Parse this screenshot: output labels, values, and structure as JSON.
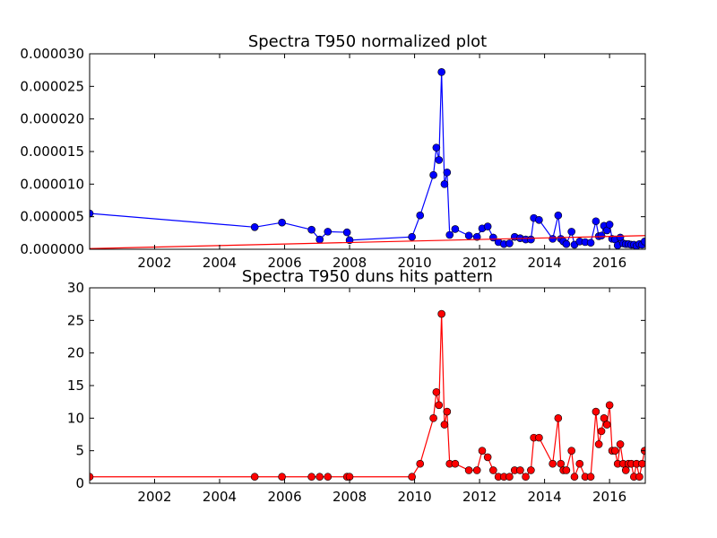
{
  "chart_data": [
    {
      "type": "line",
      "title": "Spectra T950 normalized plot",
      "xlabel": "",
      "ylabel": "",
      "xlim": [
        2000.0,
        2017.1
      ],
      "ylim": [
        0,
        3e-05
      ],
      "xticks": [
        2002,
        2004,
        2006,
        2008,
        2010,
        2012,
        2014,
        2016
      ],
      "xtick_labels": [
        "2002",
        "2004",
        "2006",
        "2008",
        "2010",
        "2012",
        "2014",
        "2016"
      ],
      "yticks": [
        0,
        5e-06,
        1e-05,
        1.5e-05,
        2e-05,
        2.5e-05,
        3e-05
      ],
      "ytick_labels": [
        "0.000000",
        "0.000005",
        "0.000010",
        "0.000015",
        "0.000020",
        "0.000025",
        "0.000030"
      ],
      "grid": false,
      "series": [
        {
          "color": "#0000ff",
          "marker": "circle",
          "x": [
            2000.0,
            2005.08,
            2005.92,
            2006.83,
            2007.08,
            2007.33,
            2007.92,
            2008.0,
            2009.92,
            2010.17,
            2010.58,
            2010.67,
            2010.75,
            2010.83,
            2010.92,
            2011.0,
            2011.08,
            2011.25,
            2011.67,
            2011.92,
            2012.08,
            2012.25,
            2012.42,
            2012.58,
            2012.75,
            2012.92,
            2013.08,
            2013.25,
            2013.42,
            2013.58,
            2013.67,
            2013.83,
            2014.25,
            2014.42,
            2014.5,
            2014.58,
            2014.67,
            2014.83,
            2014.92,
            2015.08,
            2015.25,
            2015.42,
            2015.58,
            2015.67,
            2015.75,
            2015.83,
            2015.92,
            2016.0,
            2016.08,
            2016.17,
            2016.25,
            2016.33,
            2016.42,
            2016.5,
            2016.58,
            2016.67,
            2016.75,
            2016.83,
            2016.92,
            2017.0,
            2017.08
          ],
          "y": [
            5.5e-06,
            3.4e-06,
            4.1e-06,
            3e-06,
            1.5e-06,
            2.7e-06,
            2.6e-06,
            1.4e-06,
            1.9e-06,
            5.2e-06,
            1.14e-05,
            1.56e-05,
            1.37e-05,
            2.72e-05,
            1e-05,
            1.18e-05,
            2.2e-06,
            3.1e-06,
            2.1e-06,
            1.9e-06,
            3.2e-06,
            3.5e-06,
            1.8e-06,
            1.1e-06,
            8e-07,
            9e-07,
            1.9e-06,
            1.7e-06,
            1.5e-06,
            1.5e-06,
            4.8e-06,
            4.5e-06,
            1.6e-06,
            5.2e-06,
            1.6e-06,
            1.2e-06,
            8e-07,
            2.7e-06,
            7e-07,
            1.2e-06,
            1.1e-06,
            1e-06,
            4.3e-06,
            2e-06,
            2.1e-06,
            3.6e-06,
            2.9e-06,
            3.8e-06,
            1.6e-06,
            1.5e-06,
            6e-07,
            1.8e-06,
            9e-07,
            8e-07,
            8e-07,
            7e-07,
            7e-07,
            5e-07,
            8e-07,
            7e-07,
            1.2e-06
          ]
        },
        {
          "color": "#ff0000",
          "marker": "none",
          "x": [
            2000.0,
            2017.1
          ],
          "y": [
            1e-07,
            2.1e-06
          ]
        }
      ]
    },
    {
      "type": "line",
      "title": "Spectra T950 duns hits pattern",
      "xlabel": "",
      "ylabel": "",
      "xlim": [
        2000.0,
        2017.1
      ],
      "ylim": [
        0,
        30
      ],
      "xticks": [
        2002,
        2004,
        2006,
        2008,
        2010,
        2012,
        2014,
        2016
      ],
      "xtick_labels": [
        "2002",
        "2004",
        "2006",
        "2008",
        "2010",
        "2012",
        "2014",
        "2016"
      ],
      "yticks": [
        0,
        5,
        10,
        15,
        20,
        25,
        30
      ],
      "ytick_labels": [
        "0",
        "5",
        "10",
        "15",
        "20",
        "25",
        "30"
      ],
      "grid": false,
      "series": [
        {
          "color": "#ff0000",
          "marker": "circle",
          "x": [
            2000.0,
            2005.08,
            2005.92,
            2006.83,
            2007.08,
            2007.33,
            2007.92,
            2008.0,
            2009.92,
            2010.17,
            2010.58,
            2010.67,
            2010.75,
            2010.83,
            2010.92,
            2011.0,
            2011.08,
            2011.25,
            2011.67,
            2011.92,
            2012.08,
            2012.25,
            2012.42,
            2012.58,
            2012.75,
            2012.92,
            2013.08,
            2013.25,
            2013.42,
            2013.58,
            2013.67,
            2013.83,
            2014.25,
            2014.42,
            2014.5,
            2014.58,
            2014.67,
            2014.83,
            2014.92,
            2015.08,
            2015.25,
            2015.42,
            2015.58,
            2015.67,
            2015.75,
            2015.83,
            2015.92,
            2016.0,
            2016.08,
            2016.17,
            2016.25,
            2016.33,
            2016.42,
            2016.5,
            2016.58,
            2016.67,
            2016.75,
            2016.83,
            2016.92,
            2017.0,
            2017.08
          ],
          "y": [
            1,
            1,
            1,
            1,
            1,
            1,
            1,
            1,
            1,
            3,
            10,
            14,
            12,
            26,
            9,
            11,
            3,
            3,
            2,
            2,
            5,
            4,
            2,
            1,
            1,
            1,
            2,
            2,
            1,
            2,
            7,
            7,
            3,
            10,
            3,
            2,
            2,
            5,
            1,
            3,
            1,
            1,
            11,
            6,
            8,
            10,
            9,
            12,
            5,
            5,
            3,
            6,
            3,
            2,
            3,
            3,
            1,
            3,
            1,
            3,
            5
          ]
        }
      ]
    }
  ]
}
